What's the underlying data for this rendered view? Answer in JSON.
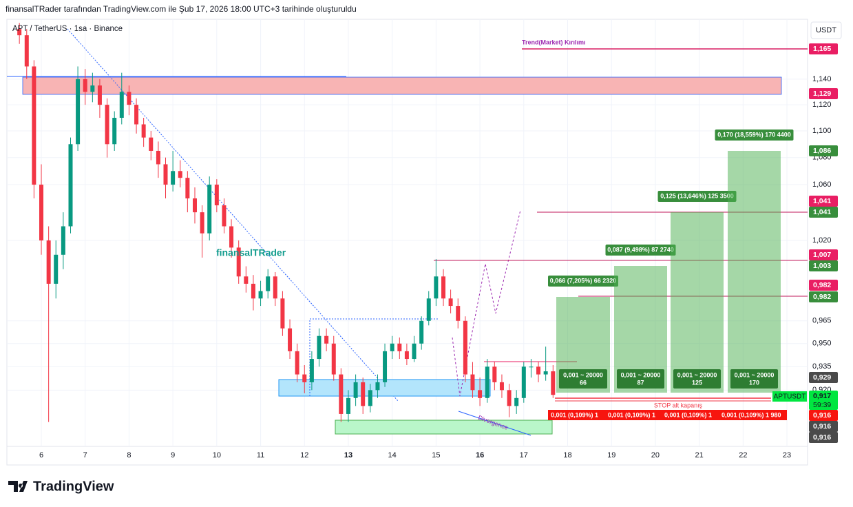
{
  "header": {
    "caption": "finansalTRader tarafından TradingView.com ile Şub 17, 2026 18:00 UTC+3 tarihinde oluşturuldu"
  },
  "chart_data": {
    "type": "candlestick",
    "symbol": "APT / TetherUS · 1sa · Binance",
    "currency": "USDT",
    "log_scale": true,
    "up_color": "#089981",
    "down_color": "#f23645",
    "x": [
      5.5,
      5.667,
      5.833,
      6,
      6.167,
      6.333,
      6.5,
      6.667,
      6.833,
      7,
      7.167,
      7.333,
      7.5,
      7.667,
      7.833,
      8,
      8.167,
      8.333,
      8.5,
      8.667,
      8.833,
      9,
      9.167,
      9.333,
      9.5,
      9.667,
      9.833,
      10,
      10.167,
      10.333,
      10.5,
      10.667,
      10.833,
      11,
      11.167,
      11.333,
      11.5,
      11.667,
      11.833,
      12,
      12.167,
      12.333,
      12.5,
      12.667,
      12.833,
      13,
      13.167,
      13.333,
      13.5,
      13.667,
      13.833,
      14,
      14.167,
      14.333,
      14.5,
      14.667,
      14.833,
      15,
      15.167,
      15.333,
      15.5,
      15.667,
      15.833,
      16,
      16.167,
      16.333,
      16.5,
      16.667,
      16.833,
      17,
      17.167,
      17.333,
      17.5,
      17.667
    ],
    "open": [
      1.18,
      1.175,
      1.15,
      1.06,
      1.02,
      0.99,
      1.01,
      1.03,
      1.09,
      1.14,
      1.13,
      1.135,
      1.12,
      1.09,
      1.11,
      1.13,
      1.12,
      1.105,
      1.095,
      1.085,
      1.075,
      1.06,
      1.07,
      1.065,
      1.05,
      1.04,
      1.025,
      1.06,
      1.045,
      1.03,
      1.015,
      0.995,
      0.99,
      0.98,
      0.985,
      0.995,
      0.98,
      0.96,
      0.945,
      0.93,
      0.925,
      0.94,
      0.955,
      0.95,
      0.93,
      0.905,
      0.915,
      0.925,
      0.91,
      0.92,
      0.925,
      0.945,
      0.95,
      0.945,
      0.94,
      0.95,
      0.965,
      0.98,
      0.995,
      0.98,
      0.975,
      0.965,
      0.93,
      0.92,
      0.915,
      0.935,
      0.925,
      0.92,
      0.91,
      0.915,
      0.935,
      0.935,
      0.93,
      0.932
    ],
    "high": [
      1.185,
      1.18,
      1.155,
      1.075,
      1.03,
      1.02,
      1.04,
      1.095,
      1.15,
      1.148,
      1.145,
      1.14,
      1.125,
      1.115,
      1.145,
      1.135,
      1.125,
      1.11,
      1.1,
      1.092,
      1.08,
      1.085,
      1.078,
      1.07,
      1.058,
      1.045,
      1.066,
      1.064,
      1.05,
      1.035,
      1.02,
      1.002,
      0.996,
      0.992,
      1.0,
      0.998,
      0.985,
      0.966,
      0.95,
      0.936,
      0.945,
      0.96,
      0.96,
      0.955,
      0.934,
      0.92,
      0.93,
      0.928,
      0.924,
      0.93,
      0.95,
      0.955,
      0.954,
      0.95,
      0.955,
      0.968,
      0.985,
      1.007,
      1.0,
      0.986,
      0.98,
      0.968,
      0.938,
      0.928,
      0.94,
      0.938,
      0.93,
      0.924,
      0.92,
      0.938,
      0.94,
      0.938,
      0.948,
      0.936
    ],
    "low": [
      1.168,
      1.14,
      1.05,
      1.01,
      0.9,
      0.98,
      1.0,
      1.025,
      1.085,
      1.12,
      1.122,
      1.11,
      1.08,
      1.085,
      1.105,
      1.112,
      1.098,
      1.088,
      1.078,
      1.065,
      1.05,
      1.055,
      1.058,
      1.04,
      1.032,
      1.008,
      1.02,
      1.04,
      1.025,
      1.008,
      0.99,
      0.984,
      0.972,
      0.975,
      0.98,
      0.975,
      0.955,
      0.94,
      0.925,
      0.918,
      0.92,
      0.935,
      0.945,
      0.926,
      0.9,
      0.9,
      0.91,
      0.905,
      0.906,
      0.915,
      0.922,
      0.94,
      0.94,
      0.936,
      0.938,
      0.946,
      0.962,
      0.975,
      0.975,
      0.97,
      0.96,
      0.925,
      0.915,
      0.91,
      0.912,
      0.92,
      0.915,
      0.903,
      0.905,
      0.912,
      0.928,
      0.925,
      0.926,
      0.915
    ],
    "close": [
      1.175,
      1.15,
      1.06,
      1.02,
      0.99,
      1.01,
      1.03,
      1.09,
      1.14,
      1.13,
      1.135,
      1.12,
      1.09,
      1.11,
      1.13,
      1.12,
      1.105,
      1.095,
      1.085,
      1.075,
      1.06,
      1.07,
      1.065,
      1.05,
      1.04,
      1.025,
      1.06,
      1.045,
      1.03,
      1.015,
      0.995,
      0.99,
      0.98,
      0.985,
      0.995,
      0.98,
      0.96,
      0.945,
      0.93,
      0.925,
      0.94,
      0.955,
      0.95,
      0.93,
      0.905,
      0.915,
      0.925,
      0.91,
      0.92,
      0.925,
      0.945,
      0.95,
      0.945,
      0.94,
      0.95,
      0.965,
      0.98,
      0.995,
      0.98,
      0.975,
      0.965,
      0.93,
      0.92,
      0.915,
      0.935,
      0.925,
      0.92,
      0.91,
      0.915,
      0.935,
      0.935,
      0.93,
      0.932,
      0.917
    ],
    "xlim": [
      5.215,
      23.47
    ],
    "xticks": [
      6,
      7,
      8,
      9,
      10,
      11,
      12,
      13,
      14,
      15,
      16,
      17,
      18,
      19,
      20,
      21,
      22,
      23
    ],
    "ylim": [
      0.885,
      1.188
    ],
    "yticks": [
      {
        "value": 1.14,
        "label": "1,140"
      },
      {
        "value": 1.12,
        "label": "1,120"
      },
      {
        "value": 1.1,
        "label": "1,100"
      },
      {
        "value": 1.08,
        "label": "1,080"
      },
      {
        "value": 1.06,
        "label": "1,060"
      },
      {
        "value": 1.02,
        "label": "1,020"
      },
      {
        "value": 0.965,
        "label": "0,965"
      },
      {
        "value": 0.95,
        "label": "0,950"
      },
      {
        "value": 0.935,
        "label": "0,935"
      },
      {
        "value": 0.92,
        "label": "0,920"
      }
    ],
    "price_badges": [
      {
        "label": "1,165",
        "color": "#e91e63"
      },
      {
        "label": "1,129",
        "color": "#e91e63"
      },
      {
        "label": "1,086",
        "color": "#388e3c"
      },
      {
        "label": "1,041",
        "color": "#e91e63"
      },
      {
        "label": "1,041",
        "color": "#388e3c"
      },
      {
        "label": "1,007",
        "color": "#e91e63"
      },
      {
        "label": "1,003",
        "color": "#388e3c"
      },
      {
        "label": "0,982",
        "color": "#e91e63"
      },
      {
        "label": "0,982",
        "color": "#388e3c"
      },
      {
        "label": "0,929",
        "color": "#4a4a4a"
      },
      {
        "label": "0,917",
        "color": "#00e640"
      },
      {
        "label": "0,916",
        "color": "#f7150f"
      },
      {
        "label": "0,916",
        "color": "#4a4a4a"
      },
      {
        "label": "0,916",
        "color": "#4a4a4a"
      }
    ],
    "annotations": {
      "trend_break": "Trend(Market) Kırılımı",
      "watermark": "finansalTRader",
      "stop": "STOP alt kapanış",
      "divergence": "Divergence",
      "symbol_tag": "APTUSDT",
      "countdown": "59:39"
    },
    "targets": [
      {
        "label": "0,066 (7,205%) 66 2320",
        "qty": "0,001 ~ 20000",
        "amount": "66",
        "stop": "0,001 (0,109%) 1"
      },
      {
        "label": "0,087 (9,498%) 87 2740",
        "qty": "0,001 ~ 20000",
        "amount": "87",
        "stop": "0,001 (0,109%) 1"
      },
      {
        "label": "0,125 (13,646%) 125 3500",
        "qty": "0,001 ~ 20000",
        "amount": "125",
        "stop": "0,001 (0,109%) 1"
      },
      {
        "label": "0,170 (18,559%) 170 4400",
        "qty": "0,001 ~ 20000",
        "amount": "170",
        "stop": "0,001 (0,109%) 1 980"
      }
    ]
  },
  "footer": {
    "brand": "TradingView"
  }
}
